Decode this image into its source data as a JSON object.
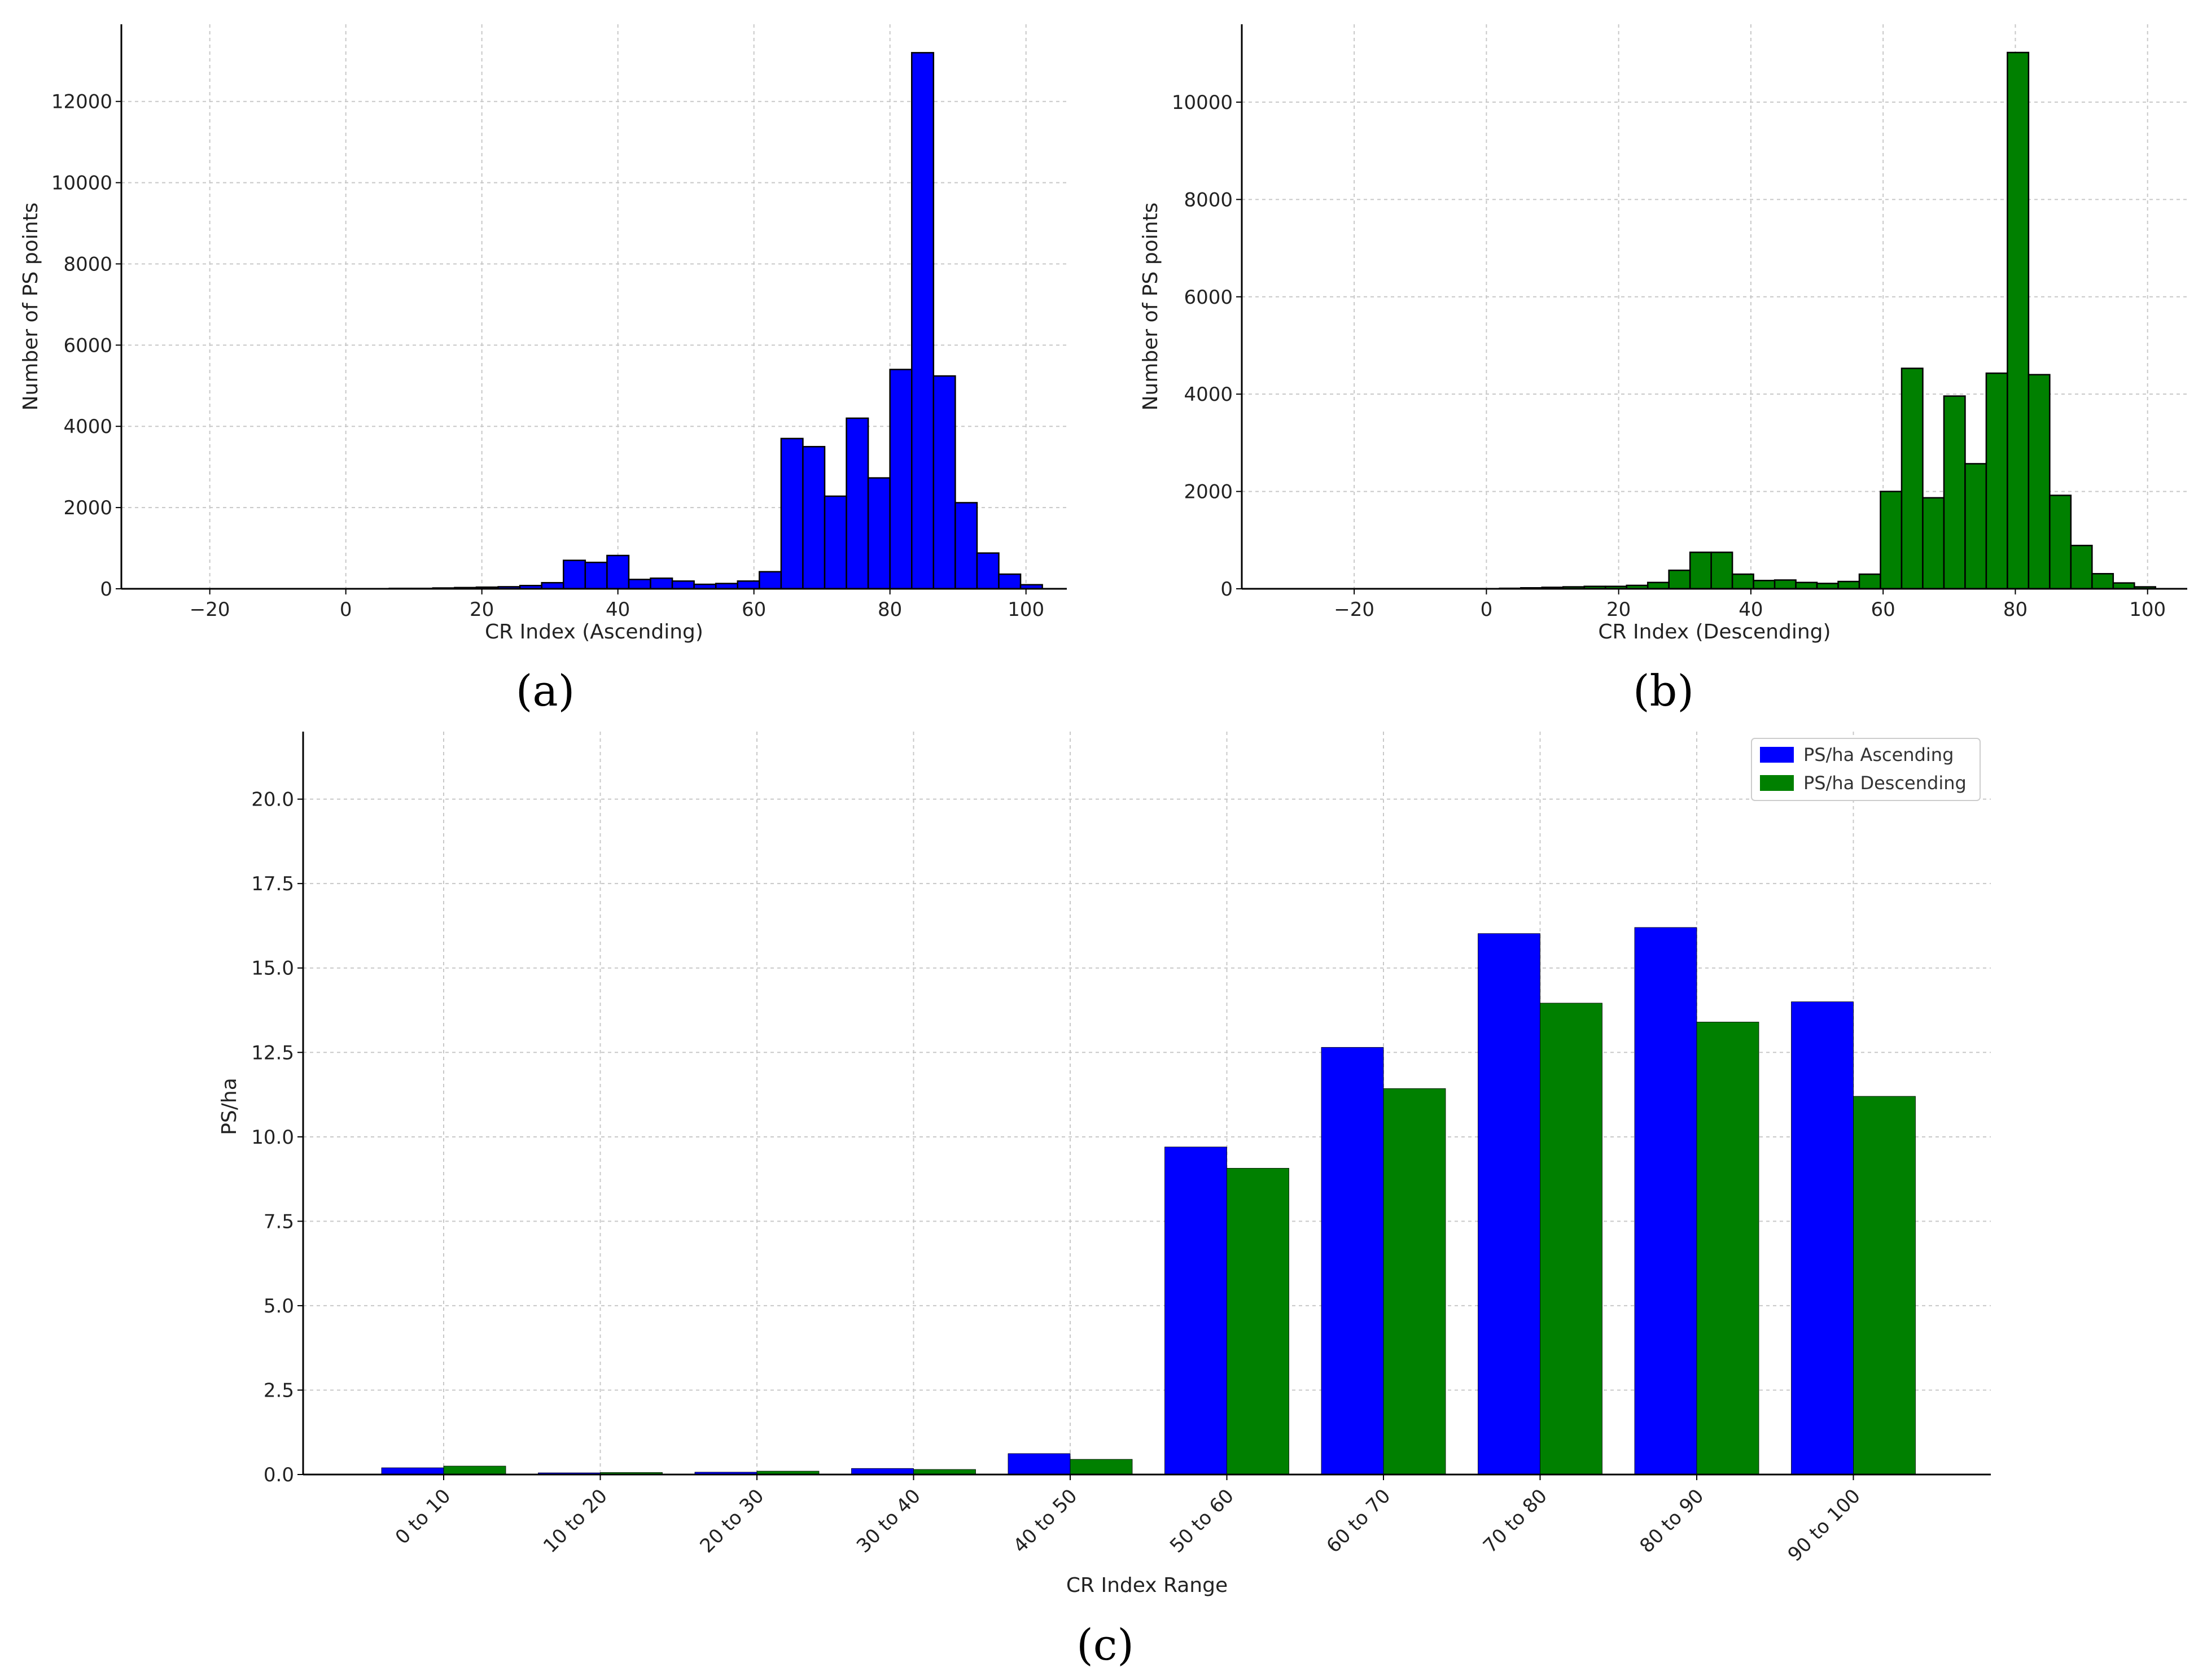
{
  "colors": {
    "ascending": "#0000ff",
    "descending": "#008000",
    "edge": "#000000"
  },
  "chart_data": [
    {
      "id": "a",
      "type": "histogram",
      "panel_label": "(a)",
      "xlabel": "CR Index (Ascending)",
      "ylabel": "Number of PS points",
      "xlim": [
        -33,
        106
      ],
      "ylim": [
        0,
        13900
      ],
      "xticks": [
        -20,
        0,
        20,
        40,
        60,
        80,
        100
      ],
      "xtick_labels": [
        "−20",
        "0",
        "20",
        "40",
        "60",
        "80",
        "100"
      ],
      "yticks": [
        0,
        2000,
        4000,
        6000,
        8000,
        10000,
        12000
      ],
      "ytick_labels": [
        "0",
        "2000",
        "4000",
        "6000",
        "8000",
        "10000",
        "12000"
      ],
      "bin_start": -32,
      "bin_width": 3.2,
      "counts": [
        0,
        0,
        0,
        0,
        0,
        0,
        0,
        0,
        0,
        0,
        0,
        0,
        10,
        10,
        20,
        30,
        40,
        50,
        80,
        150,
        700,
        650,
        820,
        230,
        260,
        190,
        110,
        130,
        190,
        420,
        3700,
        3500,
        2280,
        4200,
        2730,
        5400,
        13200,
        5240,
        2120,
        880,
        360,
        100
      ]
    },
    {
      "id": "b",
      "type": "histogram",
      "panel_label": "(b)",
      "xlabel": "CR Index (Descending)",
      "ylabel": "Number of PS points",
      "xlim": [
        -37,
        106
      ],
      "ylim": [
        0,
        11600
      ],
      "xticks": [
        -20,
        0,
        20,
        40,
        60,
        80,
        100
      ],
      "xtick_labels": [
        "−20",
        "0",
        "20",
        "40",
        "60",
        "80",
        "100"
      ],
      "yticks": [
        0,
        2000,
        4000,
        6000,
        8000,
        10000
      ],
      "ytick_labels": [
        "0",
        "2000",
        "4000",
        "6000",
        "8000",
        "10000"
      ],
      "bin_start": 2,
      "bin_width": 3.2,
      "counts": [
        10,
        20,
        30,
        40,
        50,
        50,
        70,
        130,
        380,
        750,
        750,
        300,
        170,
        180,
        130,
        110,
        150,
        300,
        2000,
        4530,
        1870,
        3960,
        2570,
        4430,
        11020,
        4400,
        1920,
        890,
        310,
        120,
        40
      ]
    },
    {
      "id": "c",
      "type": "bar",
      "panel_label": "(c)",
      "xlabel": "CR Index Range",
      "ylabel": "PS/ha",
      "ylim": [
        0,
        22
      ],
      "yticks": [
        0,
        2.5,
        5,
        7.5,
        10,
        12.5,
        15,
        17.5,
        20
      ],
      "ytick_labels": [
        "0.0",
        "2.5",
        "5.0",
        "7.5",
        "10.0",
        "12.5",
        "15.0",
        "17.5",
        "20.0"
      ],
      "categories": [
        "0 to 10",
        "10 to 20",
        "20 to 30",
        "30 to 40",
        "40 to 50",
        "50 to 60",
        "60 to 70",
        "70 to 80",
        "80 to 90",
        "90 to 100"
      ],
      "series": [
        {
          "name": "PS/ha Ascending",
          "values": [
            0.2,
            0.05,
            0.07,
            0.18,
            0.62,
            9.7,
            12.65,
            16.02,
            16.2,
            14.0
          ]
        },
        {
          "name": "PS/ha Descending",
          "values": [
            0.25,
            0.06,
            0.1,
            0.15,
            0.45,
            9.07,
            11.43,
            13.96,
            13.4,
            11.2
          ]
        }
      ],
      "legend_position": "top-right"
    }
  ]
}
